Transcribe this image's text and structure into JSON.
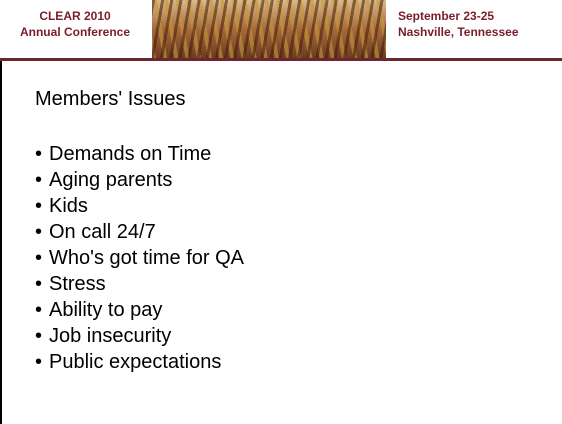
{
  "header": {
    "left": [
      "CLEAR 2010",
      "Annual Conference"
    ],
    "right": [
      "September 23-25",
      "Nashville, Tennessee"
    ]
  },
  "title": "Members' Issues",
  "bullets": [
    "Demands on Time",
    "Aging parents",
    "Kids",
    "On call 24/7",
    "Who's got time for QA",
    "Stress",
    "Ability to pay",
    "Job insecurity",
    "Public expectations"
  ]
}
